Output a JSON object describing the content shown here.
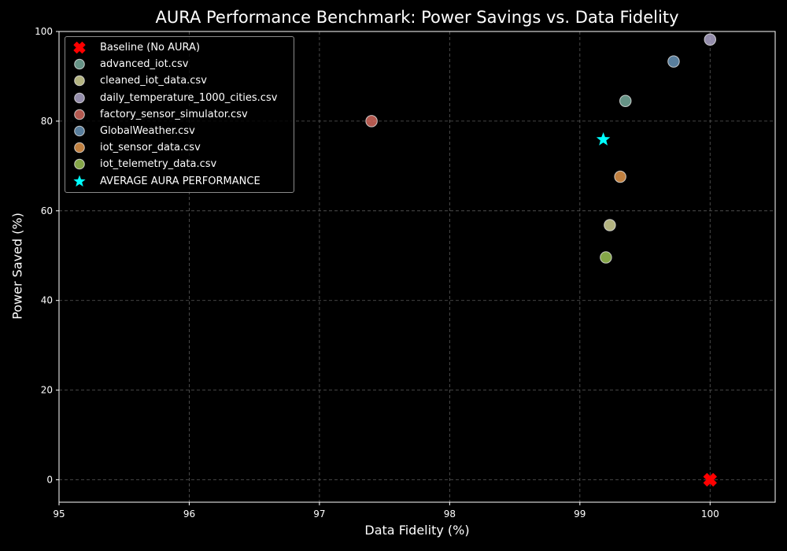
{
  "chart_data": {
    "type": "scatter",
    "title": "AURA Performance Benchmark: Power Savings vs. Data Fidelity",
    "xlabel": "Data Fidelity (%)",
    "ylabel": "Power Saved (%)",
    "xlim": [
      95,
      100.5
    ],
    "ylim": [
      -5,
      100
    ],
    "xticks": [
      95,
      96,
      97,
      98,
      99,
      100
    ],
    "yticks": [
      0,
      20,
      40,
      60,
      80,
      100
    ],
    "grid": true,
    "legend_position": "top-left",
    "series": [
      {
        "name": "Baseline (No AURA)",
        "marker": "x",
        "color": "#ff0000",
        "points": [
          {
            "x": 100.0,
            "y": 0.0
          }
        ]
      },
      {
        "name": "advanced_iot.csv",
        "marker": "circle",
        "color": "#7fb8a8",
        "points": [
          {
            "x": 99.35,
            "y": 84.5
          }
        ]
      },
      {
        "name": "cleaned_iot_data.csv",
        "marker": "circle",
        "color": "#e0e0a0",
        "points": [
          {
            "x": 99.23,
            "y": 56.8
          }
        ]
      },
      {
        "name": "daily_temperature_1000_cities.csv",
        "marker": "circle",
        "color": "#b9b0d6",
        "points": [
          {
            "x": 100.0,
            "y": 98.2
          }
        ]
      },
      {
        "name": "factory_sensor_simulator.csv",
        "marker": "circle",
        "color": "#e06f63",
        "points": [
          {
            "x": 97.4,
            "y": 80.0
          }
        ]
      },
      {
        "name": "GlobalWeather.csv",
        "marker": "circle",
        "color": "#6f9dc3",
        "points": [
          {
            "x": 99.72,
            "y": 93.3
          }
        ]
      },
      {
        "name": "iot_sensor_data.csv",
        "marker": "circle",
        "color": "#f0a050",
        "points": [
          {
            "x": 99.31,
            "y": 67.6
          }
        ]
      },
      {
        "name": "iot_telemetry_data.csv",
        "marker": "circle",
        "color": "#a6d05a",
        "points": [
          {
            "x": 99.2,
            "y": 49.6
          }
        ]
      },
      {
        "name": "AVERAGE AURA PERFORMANCE",
        "marker": "star",
        "color": "#00ffff",
        "points": [
          {
            "x": 99.18,
            "y": 75.9
          }
        ]
      }
    ]
  }
}
